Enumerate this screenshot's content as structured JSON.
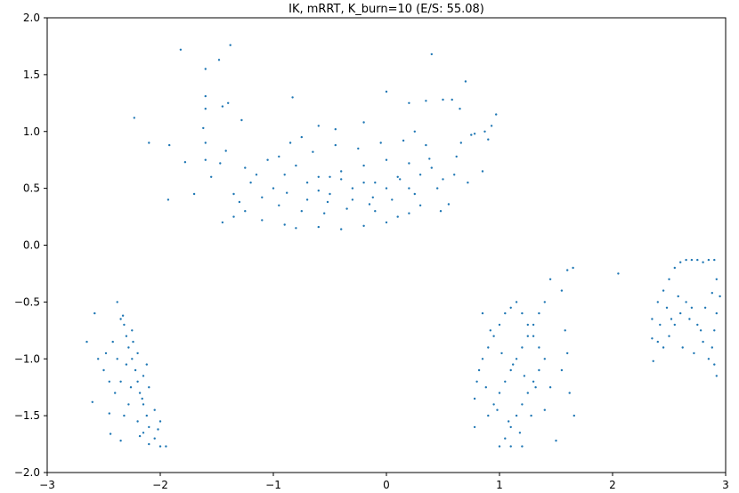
{
  "chart_data": {
    "type": "scatter",
    "title": "IK, mRRT, K_burn=10 (E/S: 55.08)",
    "xlabel": "",
    "ylabel": "",
    "xlim": [
      -3,
      3
    ],
    "ylim": [
      -2,
      2
    ],
    "x_ticks": [
      -3,
      -2,
      -1,
      0,
      1,
      2,
      3
    ],
    "x_tick_labels": [
      "−3",
      "−2",
      "−1",
      "0",
      "1",
      "2",
      "3"
    ],
    "y_ticks": [
      -2.0,
      -1.5,
      -1.0,
      -0.5,
      0.0,
      0.5,
      1.0,
      1.5,
      2.0
    ],
    "y_tick_labels": [
      "−2.0",
      "−1.5",
      "−1.0",
      "−0.5",
      "0.0",
      "0.5",
      "1.0",
      "1.5",
      "2.0"
    ],
    "grid": false,
    "marker_color": "#1f77b4",
    "series": [
      {
        "points": [
          [
            -1.82,
            1.72
          ],
          [
            -1.38,
            1.76
          ],
          [
            -1.48,
            1.63
          ],
          [
            -1.6,
            1.55
          ],
          [
            0.4,
            1.68
          ],
          [
            0.7,
            1.44
          ],
          [
            -1.6,
            1.31
          ],
          [
            -0.83,
            1.3
          ],
          [
            -1.4,
            1.25
          ],
          [
            -1.45,
            1.22
          ],
          [
            -2.23,
            1.12
          ],
          [
            0.0,
            1.35
          ],
          [
            0.2,
            1.25
          ],
          [
            0.5,
            1.28
          ],
          [
            0.58,
            1.28
          ],
          [
            0.35,
            1.27
          ],
          [
            -1.6,
            1.2
          ],
          [
            -1.28,
            1.1
          ],
          [
            -0.2,
            1.08
          ],
          [
            -0.6,
            1.05
          ],
          [
            0.65,
            1.2
          ],
          [
            0.97,
            1.15
          ],
          [
            0.93,
            1.05
          ],
          [
            0.87,
            1.0
          ],
          [
            0.9,
            0.93
          ],
          [
            -2.1,
            0.9
          ],
          [
            -1.92,
            0.88
          ],
          [
            -1.6,
            0.9
          ],
          [
            -1.62,
            1.03
          ],
          [
            -1.78,
            0.73
          ],
          [
            -1.55,
            0.6
          ],
          [
            -1.7,
            0.45
          ],
          [
            -1.93,
            0.4
          ],
          [
            -1.6,
            0.75
          ],
          [
            -1.47,
            0.72
          ],
          [
            -1.42,
            0.83
          ],
          [
            0.66,
            0.9
          ],
          [
            0.75,
            0.97
          ],
          [
            0.78,
            0.98
          ],
          [
            0.85,
            0.65
          ],
          [
            0.72,
            0.55
          ],
          [
            0.55,
            0.36
          ],
          [
            -1.45,
            0.2
          ],
          [
            -1.35,
            0.25
          ],
          [
            -1.25,
            0.3
          ],
          [
            -1.1,
            0.22
          ],
          [
            -0.9,
            0.18
          ],
          [
            -0.8,
            0.15
          ],
          [
            -0.6,
            0.16
          ],
          [
            -0.4,
            0.14
          ],
          [
            -0.2,
            0.17
          ],
          [
            0.0,
            0.2
          ],
          [
            0.1,
            0.25
          ],
          [
            0.2,
            0.28
          ],
          [
            -0.7,
            0.4
          ],
          [
            -0.5,
            0.45
          ],
          [
            -0.3,
            0.5
          ],
          [
            -0.1,
            0.55
          ],
          [
            0.1,
            0.6
          ],
          [
            0.3,
            0.62
          ],
          [
            -1.0,
            0.5
          ],
          [
            -0.9,
            0.62
          ],
          [
            -0.8,
            0.7
          ],
          [
            -0.6,
            0.6
          ],
          [
            -0.4,
            0.65
          ],
          [
            -0.2,
            0.7
          ],
          [
            0.0,
            0.75
          ],
          [
            0.2,
            0.72
          ],
          [
            0.4,
            0.68
          ],
          [
            0.5,
            0.58
          ],
          [
            -1.2,
            0.55
          ],
          [
            -1.1,
            0.42
          ],
          [
            -0.95,
            0.35
          ],
          [
            -0.75,
            0.3
          ],
          [
            -0.55,
            0.28
          ],
          [
            -0.35,
            0.32
          ],
          [
            -0.15,
            0.36
          ],
          [
            0.05,
            0.4
          ],
          [
            0.25,
            0.45
          ],
          [
            0.45,
            0.5
          ],
          [
            -0.65,
            0.82
          ],
          [
            -0.45,
            0.88
          ],
          [
            -0.25,
            0.85
          ],
          [
            -0.05,
            0.9
          ],
          [
            0.15,
            0.92
          ],
          [
            0.35,
            0.88
          ],
          [
            -0.85,
            0.9
          ],
          [
            -1.05,
            0.75
          ],
          [
            -1.25,
            0.68
          ],
          [
            -1.35,
            0.45
          ],
          [
            -0.5,
            0.6
          ],
          [
            -0.3,
            0.4
          ],
          [
            -0.1,
            0.3
          ],
          [
            0.3,
            0.35
          ],
          [
            0.6,
            0.62
          ],
          [
            0.62,
            0.78
          ],
          [
            -0.7,
            0.55
          ],
          [
            -0.2,
            0.55
          ],
          [
            0.0,
            0.5
          ],
          [
            0.2,
            0.5
          ],
          [
            -0.4,
            0.58
          ],
          [
            -0.6,
            0.48
          ],
          [
            -1.3,
            0.38
          ],
          [
            -1.15,
            0.62
          ],
          [
            -0.95,
            0.78
          ],
          [
            -0.75,
            0.95
          ],
          [
            -0.45,
            1.02
          ],
          [
            0.25,
            1.0
          ],
          [
            -0.88,
            0.46
          ],
          [
            -0.52,
            0.38
          ],
          [
            -0.12,
            0.42
          ],
          [
            0.12,
            0.58
          ],
          [
            0.38,
            0.76
          ],
          [
            0.48,
            0.3
          ],
          [
            -2.65,
            -0.85
          ],
          [
            -2.58,
            -0.6
          ],
          [
            -2.6,
            -1.38
          ],
          [
            -2.45,
            -1.48
          ],
          [
            -2.44,
            -1.66
          ],
          [
            -2.35,
            -1.72
          ],
          [
            -2.38,
            -0.5
          ],
          [
            -2.35,
            -0.65
          ],
          [
            -2.32,
            -0.7
          ],
          [
            -2.3,
            -0.8
          ],
          [
            -2.28,
            -0.9
          ],
          [
            -2.25,
            -1.0
          ],
          [
            -2.22,
            -1.1
          ],
          [
            -2.2,
            -1.2
          ],
          [
            -2.18,
            -1.3
          ],
          [
            -2.15,
            -1.4
          ],
          [
            -2.12,
            -1.5
          ],
          [
            -2.1,
            -1.6
          ],
          [
            -2.05,
            -1.7
          ],
          [
            -2.0,
            -1.77
          ],
          [
            -1.95,
            -1.77
          ],
          [
            -2.3,
            -1.05
          ],
          [
            -2.35,
            -1.2
          ],
          [
            -2.4,
            -1.3
          ],
          [
            -2.28,
            -1.4
          ],
          [
            -2.2,
            -1.55
          ],
          [
            -2.15,
            -1.65
          ],
          [
            -2.25,
            -0.75
          ],
          [
            -2.2,
            -0.95
          ],
          [
            -2.15,
            -1.15
          ],
          [
            -2.1,
            -1.25
          ],
          [
            -2.05,
            -1.45
          ],
          [
            -2.0,
            -1.55
          ],
          [
            -2.48,
            -0.95
          ],
          [
            -2.5,
            -1.1
          ],
          [
            -2.42,
            -0.85
          ],
          [
            -2.32,
            -1.5
          ],
          [
            -2.18,
            -1.68
          ],
          [
            -2.1,
            -1.75
          ],
          [
            -2.38,
            -1.0
          ],
          [
            -2.26,
            -1.25
          ],
          [
            -2.12,
            -1.05
          ],
          [
            -2.33,
            -0.62
          ],
          [
            -2.24,
            -0.85
          ],
          [
            -2.16,
            -1.35
          ],
          [
            -2.02,
            -1.62
          ],
          [
            -2.45,
            -1.2
          ],
          [
            -2.55,
            -1.0
          ],
          [
            0.78,
            -1.6
          ],
          [
            0.78,
            -1.35
          ],
          [
            0.8,
            -1.2
          ],
          [
            0.85,
            -1.0
          ],
          [
            0.9,
            -0.9
          ],
          [
            0.95,
            -0.8
          ],
          [
            1.0,
            -0.7
          ],
          [
            1.05,
            -0.6
          ],
          [
            1.1,
            -0.55
          ],
          [
            1.15,
            -0.5
          ],
          [
            1.2,
            -0.6
          ],
          [
            1.25,
            -0.7
          ],
          [
            1.3,
            -0.8
          ],
          [
            1.35,
            -0.9
          ],
          [
            1.4,
            -1.0
          ],
          [
            1.35,
            -1.1
          ],
          [
            1.3,
            -1.2
          ],
          [
            1.25,
            -1.3
          ],
          [
            1.2,
            -1.4
          ],
          [
            1.15,
            -1.5
          ],
          [
            1.1,
            -1.6
          ],
          [
            1.05,
            -1.7
          ],
          [
            1.0,
            -1.77
          ],
          [
            1.1,
            -1.77
          ],
          [
            1.2,
            -1.77
          ],
          [
            0.9,
            -1.5
          ],
          [
            0.95,
            -1.4
          ],
          [
            1.0,
            -1.3
          ],
          [
            1.05,
            -1.2
          ],
          [
            1.1,
            -1.1
          ],
          [
            1.15,
            -1.0
          ],
          [
            1.2,
            -0.9
          ],
          [
            1.25,
            -0.8
          ],
          [
            1.3,
            -0.7
          ],
          [
            1.35,
            -0.6
          ],
          [
            1.4,
            -0.5
          ],
          [
            1.45,
            -0.3
          ],
          [
            1.55,
            -0.4
          ],
          [
            1.65,
            -0.2
          ],
          [
            1.6,
            -0.22
          ],
          [
            1.58,
            -0.75
          ],
          [
            1.6,
            -0.95
          ],
          [
            1.55,
            -1.1
          ],
          [
            1.62,
            -1.3
          ],
          [
            1.66,
            -1.5
          ],
          [
            1.5,
            -1.72
          ],
          [
            1.4,
            -1.45
          ],
          [
            1.45,
            -1.25
          ],
          [
            0.85,
            -0.6
          ],
          [
            0.92,
            -0.75
          ],
          [
            1.02,
            -0.95
          ],
          [
            1.12,
            -1.05
          ],
          [
            1.22,
            -1.15
          ],
          [
            1.32,
            -1.25
          ],
          [
            0.82,
            -1.1
          ],
          [
            0.88,
            -1.25
          ],
          [
            0.98,
            -1.45
          ],
          [
            1.08,
            -1.55
          ],
          [
            1.18,
            -1.65
          ],
          [
            1.28,
            -1.5
          ],
          [
            2.05,
            -0.25
          ],
          [
            2.35,
            -0.65
          ],
          [
            2.35,
            -0.82
          ],
          [
            2.36,
            -1.02
          ],
          [
            2.4,
            -0.5
          ],
          [
            2.45,
            -0.4
          ],
          [
            2.5,
            -0.3
          ],
          [
            2.55,
            -0.2
          ],
          [
            2.6,
            -0.15
          ],
          [
            2.65,
            -0.13
          ],
          [
            2.7,
            -0.13
          ],
          [
            2.75,
            -0.13
          ],
          [
            2.8,
            -0.15
          ],
          [
            2.85,
            -0.13
          ],
          [
            2.9,
            -0.13
          ],
          [
            2.92,
            -0.3
          ],
          [
            2.95,
            -0.45
          ],
          [
            2.92,
            -0.6
          ],
          [
            2.9,
            -0.75
          ],
          [
            2.88,
            -0.9
          ],
          [
            2.9,
            -1.05
          ],
          [
            2.92,
            -1.15
          ],
          [
            2.85,
            -1.0
          ],
          [
            2.8,
            -0.85
          ],
          [
            2.75,
            -0.7
          ],
          [
            2.7,
            -0.55
          ],
          [
            2.65,
            -0.5
          ],
          [
            2.6,
            -0.6
          ],
          [
            2.55,
            -0.7
          ],
          [
            2.5,
            -0.8
          ],
          [
            2.45,
            -0.9
          ],
          [
            2.4,
            -0.85
          ],
          [
            2.48,
            -0.55
          ],
          [
            2.58,
            -0.45
          ],
          [
            2.68,
            -0.65
          ],
          [
            2.78,
            -0.75
          ],
          [
            2.62,
            -0.9
          ],
          [
            2.72,
            -0.95
          ],
          [
            2.82,
            -0.55
          ],
          [
            2.52,
            -0.65
          ],
          [
            2.42,
            -0.7
          ],
          [
            2.88,
            -0.42
          ]
        ]
      }
    ]
  }
}
